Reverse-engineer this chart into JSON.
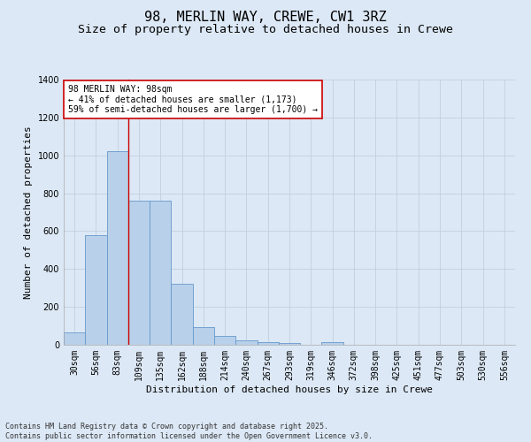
{
  "title_line1": "98, MERLIN WAY, CREWE, CW1 3RZ",
  "title_line2": "Size of property relative to detached houses in Crewe",
  "xlabel": "Distribution of detached houses by size in Crewe",
  "ylabel": "Number of detached properties",
  "categories": [
    "30sqm",
    "56sqm",
    "83sqm",
    "109sqm",
    "135sqm",
    "162sqm",
    "188sqm",
    "214sqm",
    "240sqm",
    "267sqm",
    "293sqm",
    "319sqm",
    "346sqm",
    "372sqm",
    "398sqm",
    "425sqm",
    "451sqm",
    "477sqm",
    "503sqm",
    "530sqm",
    "556sqm"
  ],
  "values": [
    65,
    580,
    1020,
    760,
    760,
    320,
    95,
    45,
    25,
    15,
    10,
    0,
    12,
    0,
    0,
    0,
    0,
    0,
    0,
    0,
    0
  ],
  "bar_color": "#b8d0ea",
  "bar_edge_color": "#6699cc",
  "ylim": [
    0,
    1400
  ],
  "yticks": [
    0,
    200,
    400,
    600,
    800,
    1000,
    1200,
    1400
  ],
  "grid_color": "#c0d0e0",
  "background_color": "#dce8f5",
  "annotation_title": "98 MERLIN WAY: 98sqm",
  "annotation_line2": "← 41% of detached houses are smaller (1,173)",
  "annotation_line3": "59% of semi-detached houses are larger (1,700) →",
  "vline_position": 2.5,
  "vline_color": "#cc0000",
  "annotation_box_facecolor": "#ffffff",
  "annotation_box_edgecolor": "#cc0000",
  "footer_line1": "Contains HM Land Registry data © Crown copyright and database right 2025.",
  "footer_line2": "Contains public sector information licensed under the Open Government Licence v3.0.",
  "title_fontsize": 11,
  "subtitle_fontsize": 9.5,
  "tick_fontsize": 7,
  "ylabel_fontsize": 8,
  "xlabel_fontsize": 8,
  "annotation_fontsize": 7,
  "footer_fontsize": 6
}
